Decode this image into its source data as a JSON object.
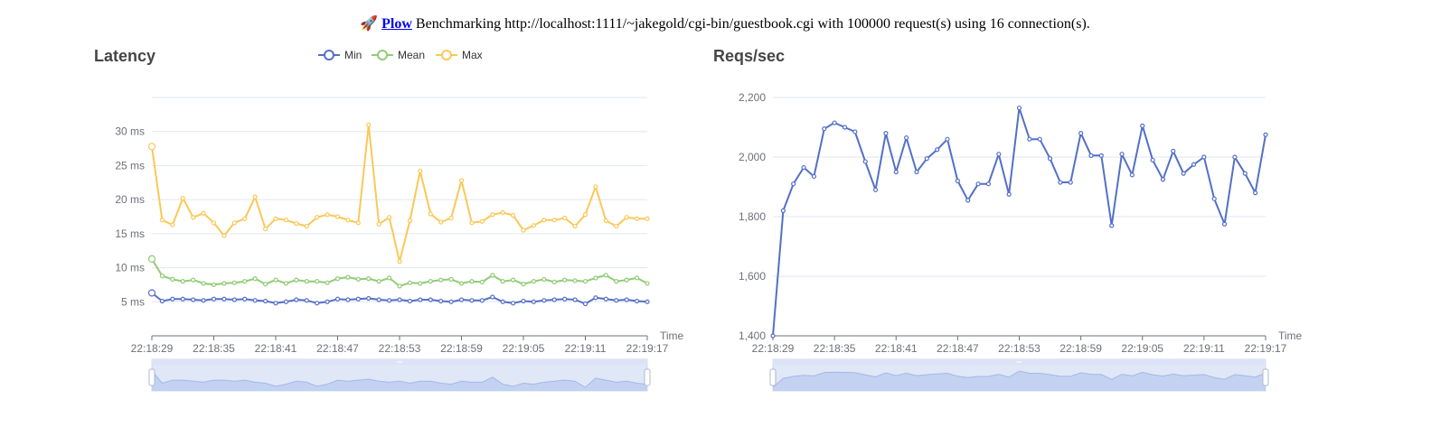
{
  "header": {
    "icon": "rocket-icon",
    "icon_glyph": "🚀",
    "link_text": "Plow",
    "text": " Benchmarking http://localhost:1111/~jakegold/cgi-bin/guestbook.cgi with 100000 request(s) using 16 connection(s)."
  },
  "chart_data": [
    {
      "type": "line",
      "title": "Latency",
      "xlabel": "Time",
      "ylabel": "",
      "y_unit": "ms",
      "ylim": [
        0,
        35
      ],
      "y_ticks": [
        5,
        10,
        15,
        20,
        25,
        30
      ],
      "x_ticks": [
        "22:18:29",
        "22:18:35",
        "22:18:41",
        "22:18:47",
        "22:18:53",
        "22:18:59",
        "22:19:05",
        "22:19:11",
        "22:19:17"
      ],
      "legend": "top",
      "grid": true,
      "data_zoom": true,
      "series": [
        {
          "name": "Min",
          "color": "#5470c6",
          "values": [
            6.3,
            5.1,
            5.4,
            5.4,
            5.3,
            5.2,
            5.4,
            5.4,
            5.3,
            5.4,
            5.2,
            5.1,
            4.8,
            5.0,
            5.3,
            5.2,
            4.8,
            5.0,
            5.4,
            5.3,
            5.4,
            5.5,
            5.3,
            5.2,
            5.3,
            5.1,
            5.3,
            5.3,
            5.1,
            5.0,
            5.3,
            5.2,
            5.2,
            5.7,
            5.0,
            4.8,
            5.1,
            5.0,
            5.2,
            5.3,
            5.4,
            5.3,
            4.7,
            5.6,
            5.4,
            5.2,
            5.3,
            5.1,
            5.0
          ]
        },
        {
          "name": "Mean",
          "color": "#91cc75",
          "values": [
            11.3,
            8.8,
            8.3,
            8.0,
            8.2,
            7.7,
            7.5,
            7.7,
            7.8,
            8.0,
            8.4,
            7.6,
            8.2,
            7.7,
            8.2,
            8.0,
            8.0,
            7.8,
            8.4,
            8.6,
            8.3,
            8.4,
            8.0,
            8.5,
            7.3,
            7.8,
            7.7,
            8.0,
            8.2,
            8.3,
            7.7,
            8.0,
            7.9,
            8.9,
            8.0,
            8.2,
            7.6,
            8.0,
            8.3,
            7.9,
            8.2,
            8.1,
            8.0,
            8.5,
            8.9,
            8.0,
            8.2,
            8.5,
            7.7
          ]
        },
        {
          "name": "Max",
          "color": "#fac858",
          "values": [
            27.8,
            17.0,
            16.3,
            20.2,
            17.4,
            18.0,
            16.6,
            14.7,
            16.6,
            17.2,
            20.4,
            15.7,
            17.2,
            17.0,
            16.5,
            16.1,
            17.4,
            17.8,
            17.5,
            17.0,
            16.6,
            31.0,
            16.4,
            17.4,
            10.9,
            16.9,
            24.2,
            17.9,
            16.7,
            17.3,
            22.8,
            16.6,
            16.8,
            17.8,
            18.1,
            17.7,
            15.5,
            16.2,
            17.0,
            17.0,
            17.3,
            16.1,
            17.8,
            21.9,
            16.9,
            16.1,
            17.4,
            17.2,
            17.2
          ]
        }
      ]
    },
    {
      "type": "line",
      "title": "Reqs/sec",
      "xlabel": "Time",
      "ylabel": "",
      "ylim": [
        1400,
        2200
      ],
      "y_ticks": [
        "1,400",
        "1,600",
        "1,800",
        "2,000",
        "2,200"
      ],
      "x_ticks": [
        "22:18:29",
        "22:18:35",
        "22:18:41",
        "22:18:47",
        "22:18:53",
        "22:18:59",
        "22:19:05",
        "22:19:11",
        "22:19:17"
      ],
      "grid": true,
      "data_zoom": true,
      "series": [
        {
          "name": "",
          "color": "#5470c6",
          "values": [
            1400,
            1820,
            1910,
            1965,
            1935,
            2095,
            2115,
            2100,
            2085,
            1985,
            1890,
            2080,
            1950,
            2065,
            1950,
            1995,
            2025,
            2060,
            1920,
            1855,
            1910,
            1910,
            2010,
            1875,
            2165,
            2060,
            2060,
            1995,
            1915,
            1915,
            2080,
            2005,
            2005,
            1770,
            2010,
            1940,
            2105,
            1990,
            1925,
            2020,
            1945,
            1975,
            2000,
            1860,
            1775,
            2000,
            1945,
            1880,
            2075
          ]
        }
      ]
    }
  ]
}
